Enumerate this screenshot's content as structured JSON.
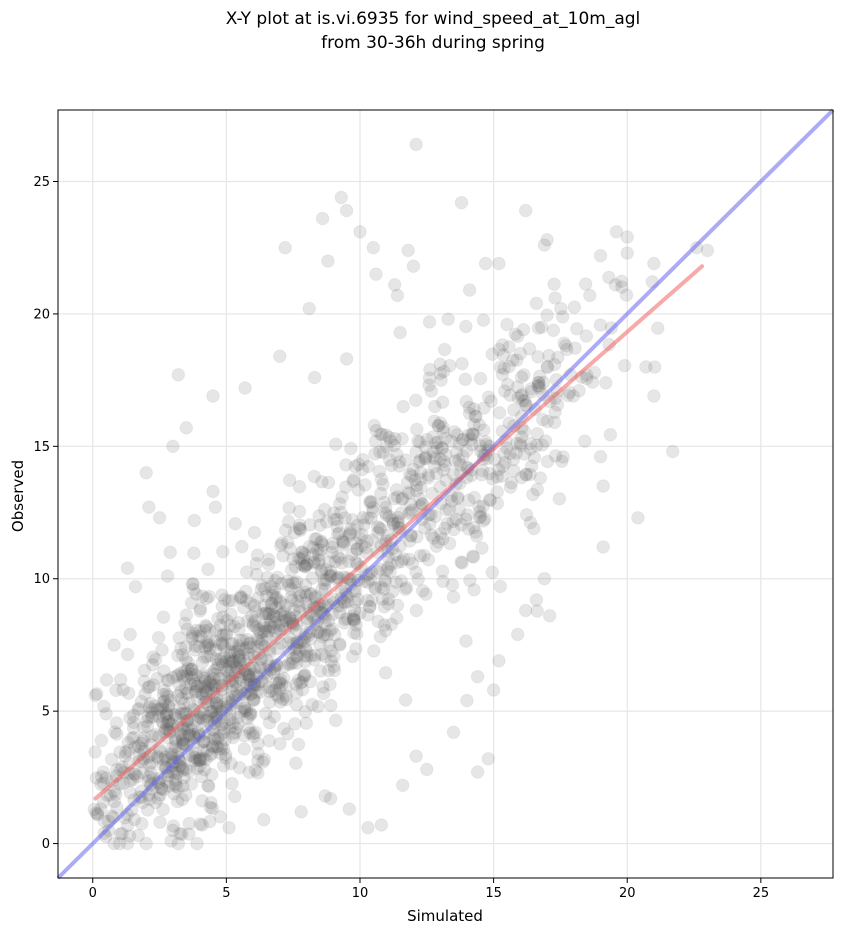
{
  "chart_data": {
    "type": "scatter",
    "title_line1": "X-Y plot at is.vi.6935 for wind_speed_at_10m_agl",
    "title_line2": "from 30-36h during spring",
    "xlabel": "Simulated",
    "ylabel": "Observed",
    "xlim": [
      -1.3,
      27.7
    ],
    "ylim": [
      -1.3,
      27.7
    ],
    "xticks": [
      0,
      5,
      10,
      15,
      20,
      25
    ],
    "yticks": [
      0,
      5,
      10,
      15,
      20,
      25
    ],
    "grid": true,
    "points_color": "#555555",
    "points_alpha": 0.15,
    "identity_line": {
      "color": "#6666ee",
      "x": [
        -1.3,
        27.7
      ],
      "y": [
        -1.3,
        27.7
      ]
    },
    "fit_line": {
      "color": "#ee5555",
      "x": [
        0.1,
        22.8
      ],
      "y": [
        1.7,
        21.8
      ]
    },
    "scatter_outliers": [
      [
        12.1,
        26.4
      ],
      [
        9.3,
        24.4
      ],
      [
        9.5,
        23.9
      ],
      [
        8.6,
        23.6
      ],
      [
        13.8,
        24.2
      ],
      [
        16.2,
        23.9
      ],
      [
        7.2,
        22.5
      ],
      [
        10.0,
        23.1
      ],
      [
        10.5,
        22.5
      ],
      [
        11.8,
        22.4
      ],
      [
        8.8,
        22.0
      ],
      [
        12.0,
        21.8
      ],
      [
        16.9,
        22.6
      ],
      [
        17.0,
        22.8
      ],
      [
        19.6,
        23.1
      ],
      [
        20.0,
        22.9
      ],
      [
        22.6,
        22.5
      ],
      [
        23.0,
        22.4
      ],
      [
        19.0,
        22.2
      ],
      [
        21.0,
        21.9
      ],
      [
        20.0,
        22.3
      ],
      [
        14.7,
        21.9
      ],
      [
        15.2,
        21.9
      ],
      [
        10.6,
        21.5
      ],
      [
        11.3,
        21.1
      ],
      [
        11.4,
        20.7
      ],
      [
        14.1,
        20.9
      ],
      [
        16.6,
        20.4
      ],
      [
        17.3,
        20.6
      ],
      [
        18.6,
        20.7
      ],
      [
        8.1,
        20.2
      ],
      [
        12.6,
        19.7
      ],
      [
        13.3,
        19.8
      ],
      [
        15.5,
        19.6
      ],
      [
        11.5,
        19.3
      ],
      [
        16.8,
        19.5
      ],
      [
        8.3,
        17.6
      ],
      [
        7.0,
        18.4
      ],
      [
        9.5,
        18.3
      ],
      [
        19.2,
        17.4
      ],
      [
        20.7,
        18.0
      ],
      [
        21.0,
        16.9
      ],
      [
        21.7,
        14.8
      ],
      [
        20.4,
        12.3
      ],
      [
        19.1,
        13.5
      ],
      [
        19.1,
        11.2
      ],
      [
        16.9,
        10.0
      ],
      [
        17.1,
        8.6
      ],
      [
        15.9,
        7.9
      ],
      [
        15.2,
        6.9
      ],
      [
        15.0,
        5.8
      ],
      [
        14.4,
        6.3
      ],
      [
        14.0,
        5.4
      ],
      [
        14.8,
        3.2
      ],
      [
        14.4,
        2.7
      ],
      [
        12.1,
        3.3
      ],
      [
        13.5,
        4.2
      ],
      [
        12.5,
        2.8
      ],
      [
        11.6,
        2.2
      ],
      [
        10.8,
        0.7
      ],
      [
        10.3,
        0.6
      ],
      [
        9.6,
        1.3
      ],
      [
        8.7,
        1.8
      ],
      [
        4.5,
        16.9
      ],
      [
        3.5,
        15.7
      ],
      [
        3.0,
        15.0
      ],
      [
        3.2,
        17.7
      ],
      [
        5.7,
        17.2
      ],
      [
        2.0,
        14.0
      ],
      [
        2.9,
        11.0
      ],
      [
        1.3,
        10.4
      ],
      [
        2.8,
        10.1
      ],
      [
        4.5,
        13.3
      ],
      [
        2.1,
        12.7
      ],
      [
        2.5,
        12.3
      ],
      [
        3.8,
        12.2
      ],
      [
        1.6,
        9.7
      ],
      [
        1.4,
        7.9
      ],
      [
        0.8,
        7.5
      ],
      [
        0.1,
        5.6
      ],
      [
        0.5,
        4.9
      ],
      [
        0.4,
        2.7
      ],
      [
        0.3,
        1.3
      ],
      [
        0.8,
        0.0
      ],
      [
        1.0,
        0.0
      ],
      [
        1.3,
        0.0
      ],
      [
        2.0,
        0.0
      ],
      [
        3.2,
        0.0
      ],
      [
        3.9,
        0.0
      ],
      [
        4.1,
        0.7
      ],
      [
        3.0,
        0.5
      ],
      [
        1.7,
        0.3
      ],
      [
        6.4,
        0.9
      ],
      [
        5.1,
        0.6
      ],
      [
        7.8,
        1.2
      ],
      [
        8.9,
        1.7
      ],
      [
        16.2,
        8.8
      ],
      [
        16.6,
        9.2
      ],
      [
        17.6,
        14.6
      ],
      [
        18.2,
        17.1
      ],
      [
        16.0,
        18.5
      ],
      [
        13.0,
        18.1
      ]
    ],
    "scatter_cluster": [
      [
        5.0,
        6.0,
        2.0,
        2.2,
        520
      ],
      [
        8.5,
        9.5,
        2.4,
        2.6,
        380
      ],
      [
        12.5,
        13.5,
        2.4,
        2.6,
        260
      ],
      [
        3.0,
        3.5,
        1.6,
        1.7,
        220
      ],
      [
        16.0,
        16.5,
        1.8,
        2.2,
        140
      ]
    ]
  }
}
